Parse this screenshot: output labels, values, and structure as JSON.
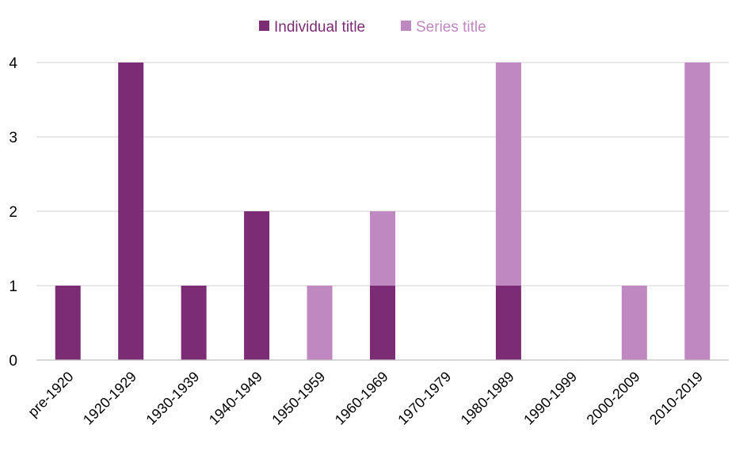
{
  "chart_data": {
    "type": "bar",
    "stacked": true,
    "categories": [
      "pre-1920",
      "1920-1929",
      "1930-1939",
      "1940-1949",
      "1950-1959",
      "1960-1969",
      "1970-1979",
      "1980-1989",
      "1990-1999",
      "2000-2009",
      "2010-2019"
    ],
    "series": [
      {
        "name": "Individual title",
        "color": "#7b2c75",
        "values": [
          1,
          4,
          1,
          2,
          0,
          1,
          0,
          1,
          0,
          0,
          0
        ]
      },
      {
        "name": "Series title",
        "color": "#c088c0",
        "values": [
          0,
          0,
          0,
          0,
          1,
          1,
          0,
          3,
          0,
          1,
          4
        ]
      }
    ],
    "ylim": [
      0,
      4
    ],
    "yticks": [
      0,
      1,
      2,
      3,
      4
    ],
    "grid": true,
    "legend_position": "top-center",
    "title": "",
    "xlabel": "",
    "ylabel": ""
  }
}
